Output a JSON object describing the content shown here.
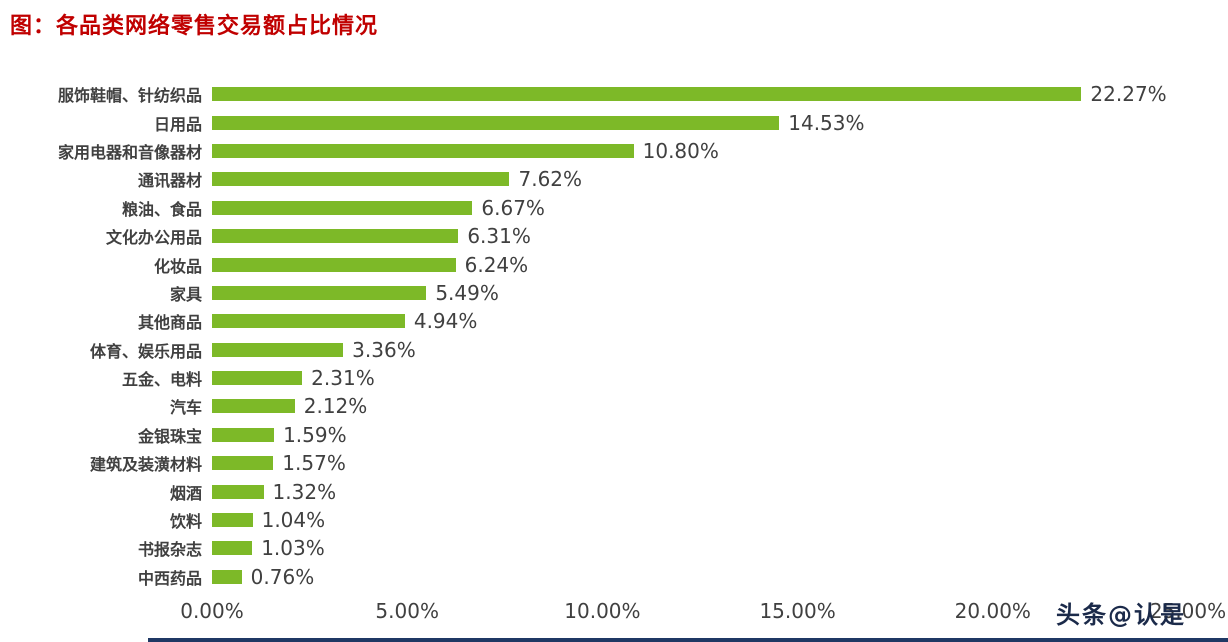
{
  "title": "图：各品类网络零售交易额占比情况",
  "watermark": "头条@认是",
  "colors": {
    "bar": "#7DB928",
    "title": "#C00000",
    "text": "#404040",
    "watermark": "#1B2A4A",
    "baseline": "#1F3864"
  },
  "chart_data": {
    "type": "bar",
    "orientation": "horizontal",
    "title": "图：各品类网络零售交易额占比情况",
    "categories": [
      "服饰鞋帽、针纺织品",
      "日用品",
      "家用电器和音像器材",
      "通讯器材",
      "粮油、食品",
      "文化办公用品",
      "化妆品",
      "家具",
      "其他商品",
      "体育、娱乐用品",
      "五金、电料",
      "汽车",
      "金银珠宝",
      "建筑及装潢材料",
      "烟酒",
      "饮料",
      "书报杂志",
      "中西药品"
    ],
    "values": [
      22.27,
      14.53,
      10.8,
      7.62,
      6.67,
      6.31,
      6.24,
      5.49,
      4.94,
      3.36,
      2.31,
      2.12,
      1.59,
      1.57,
      1.32,
      1.04,
      1.03,
      0.76
    ],
    "value_labels": [
      "22.27%",
      "14.53%",
      "10.80%",
      "7.62%",
      "6.67%",
      "6.31%",
      "6.24%",
      "5.49%",
      "4.94%",
      "3.36%",
      "2.31%",
      "2.12%",
      "1.59%",
      "1.57%",
      "1.32%",
      "1.04%",
      "1.03%",
      "0.76%"
    ],
    "xlabel": "",
    "ylabel": "",
    "xlim": [
      0,
      25
    ],
    "x_tick_values": [
      0,
      5,
      10,
      15,
      20,
      25
    ],
    "x_tick_labels": [
      "0.00%",
      "5.00%",
      "10.00%",
      "15.00%",
      "20.00%",
      "25.00%"
    ],
    "grid": false,
    "legend": false
  }
}
